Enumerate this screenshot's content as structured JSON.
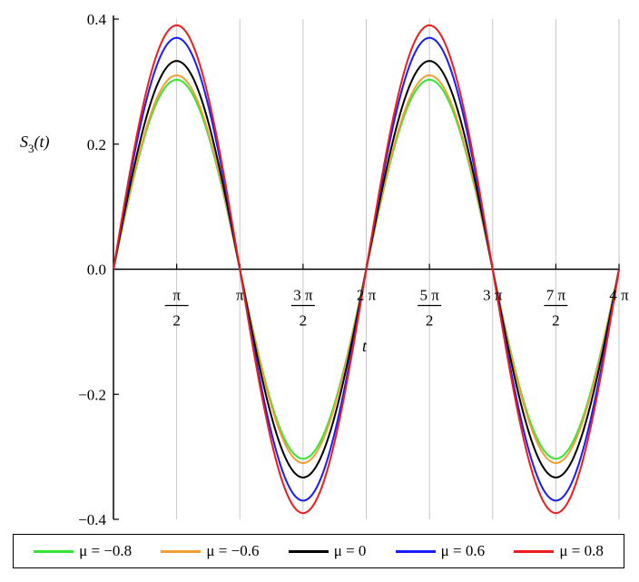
{
  "chart_data": {
    "type": "line",
    "xlabel": "t",
    "ylabel": "S",
    "ylabel_sub": "3",
    "ylabel_arg": "(t)",
    "xlim": [
      0,
      12.566
    ],
    "ylim": [
      -0.4,
      0.4
    ],
    "grid": "vertical",
    "legend_position": "bottom",
    "x_ticks": [
      {
        "value": 1.5708,
        "num": "π",
        "den": "2",
        "fraction": true
      },
      {
        "value": 3.1416,
        "num": "π",
        "den": "",
        "fraction": false
      },
      {
        "value": 4.7124,
        "num": "3 π",
        "den": "2",
        "fraction": true
      },
      {
        "value": 6.2832,
        "num": "2 π",
        "den": "",
        "fraction": false
      },
      {
        "value": 7.854,
        "num": "5 π",
        "den": "2",
        "fraction": true
      },
      {
        "value": 9.4248,
        "num": "3 π",
        "den": "",
        "fraction": false
      },
      {
        "value": 10.9956,
        "num": "7 π",
        "den": "2",
        "fraction": true
      },
      {
        "value": 12.5664,
        "num": "4 π",
        "den": "",
        "fraction": false
      }
    ],
    "y_ticks": [
      {
        "value": 0.4,
        "label": "0.4"
      },
      {
        "value": 0.2,
        "label": "0.2"
      },
      {
        "value": 0.0,
        "label": "0.0"
      },
      {
        "value": -0.2,
        "label": "−0.2"
      },
      {
        "value": -0.4,
        "label": "−0.4"
      }
    ],
    "series": [
      {
        "name": "μ = −0.8",
        "color": "#33e633",
        "amplitude": 0.303,
        "function": "amplitude*sin(t)",
        "x": [
          0,
          1.5708,
          3.1416,
          4.7124,
          6.2832,
          7.854,
          9.4248,
          10.9956,
          12.5664
        ],
        "y": [
          0,
          0.303,
          0,
          -0.303,
          0,
          0.303,
          0,
          -0.303,
          0
        ]
      },
      {
        "name": "μ = −0.6",
        "color": "#f0a030",
        "amplitude": 0.31,
        "function": "amplitude*sin(t)",
        "x": [
          0,
          1.5708,
          3.1416,
          4.7124,
          6.2832,
          7.854,
          9.4248,
          10.9956,
          12.5664
        ],
        "y": [
          0,
          0.31,
          0,
          -0.31,
          0,
          0.31,
          0,
          -0.31,
          0
        ]
      },
      {
        "name": "μ = 0",
        "color": "#000000",
        "amplitude": 0.333,
        "function": "amplitude*sin(t)",
        "x": [
          0,
          1.5708,
          3.1416,
          4.7124,
          6.2832,
          7.854,
          9.4248,
          10.9956,
          12.5664
        ],
        "y": [
          0,
          0.333,
          0,
          -0.333,
          0,
          0.333,
          0,
          -0.333,
          0
        ]
      },
      {
        "name": "μ = 0.6",
        "color": "#1a1aff",
        "amplitude": 0.37,
        "function": "amplitude*sin(t)",
        "x": [
          0,
          1.5708,
          3.1416,
          4.7124,
          6.2832,
          7.854,
          9.4248,
          10.9956,
          12.5664
        ],
        "y": [
          0,
          0.37,
          0,
          -0.37,
          0,
          0.37,
          0,
          -0.37,
          0
        ]
      },
      {
        "name": "μ = 0.8",
        "color": "#ee1c1c",
        "amplitude": 0.39,
        "function": "amplitude*sin(t)",
        "x": [
          0,
          1.5708,
          3.1416,
          4.7124,
          6.2832,
          7.854,
          9.4248,
          10.9956,
          12.5664
        ],
        "y": [
          0,
          0.39,
          0,
          -0.39,
          0,
          0.39,
          0,
          -0.39,
          0
        ]
      }
    ]
  }
}
